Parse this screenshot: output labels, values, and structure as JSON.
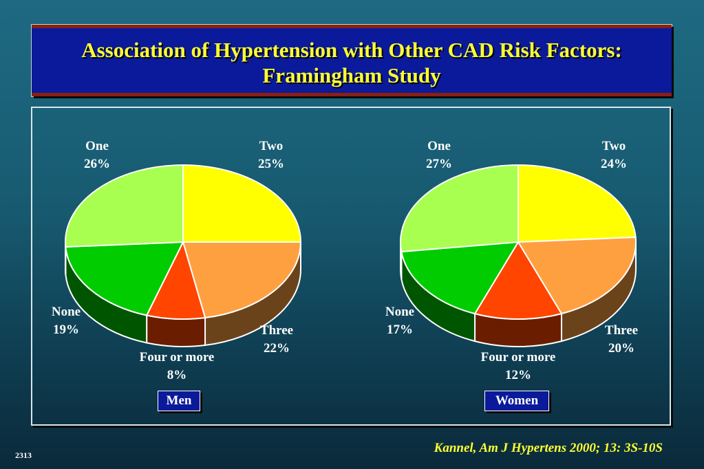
{
  "title": {
    "line1": "Association of Hypertension with Other CAD Risk Factors:",
    "line2": "Framingham Study"
  },
  "chart_data": [
    {
      "type": "pie",
      "caption": "Men",
      "slices": [
        {
          "name": "Two",
          "value": 25,
          "value_label": "25%",
          "color": "#ffff00"
        },
        {
          "name": "Three",
          "value": 22,
          "value_label": "22%",
          "color": "#ffa040"
        },
        {
          "name": "Four or more",
          "value": 8,
          "value_label": "8%",
          "color": "#ff4500"
        },
        {
          "name": "None",
          "value": 19,
          "value_label": "19%",
          "color": "#00cc00"
        },
        {
          "name": "One",
          "value": 26,
          "value_label": "26%",
          "color": "#a8ff50"
        }
      ]
    },
    {
      "type": "pie",
      "caption": "Women",
      "slices": [
        {
          "name": "Two",
          "value": 24,
          "value_label": "24%",
          "color": "#ffff00"
        },
        {
          "name": "Three",
          "value": 20,
          "value_label": "20%",
          "color": "#ffa040"
        },
        {
          "name": "Four or more",
          "value": 12,
          "value_label": "12%",
          "color": "#ff4500"
        },
        {
          "name": "None",
          "value": 17,
          "value_label": "17%",
          "color": "#00cc00"
        },
        {
          "name": "One",
          "value": 27,
          "value_label": "27%",
          "color": "#a8ff50"
        }
      ]
    }
  ],
  "citation": "Kannel, Am J Hypertens 2000; 13: 3S-10S",
  "slide_number": "2313"
}
